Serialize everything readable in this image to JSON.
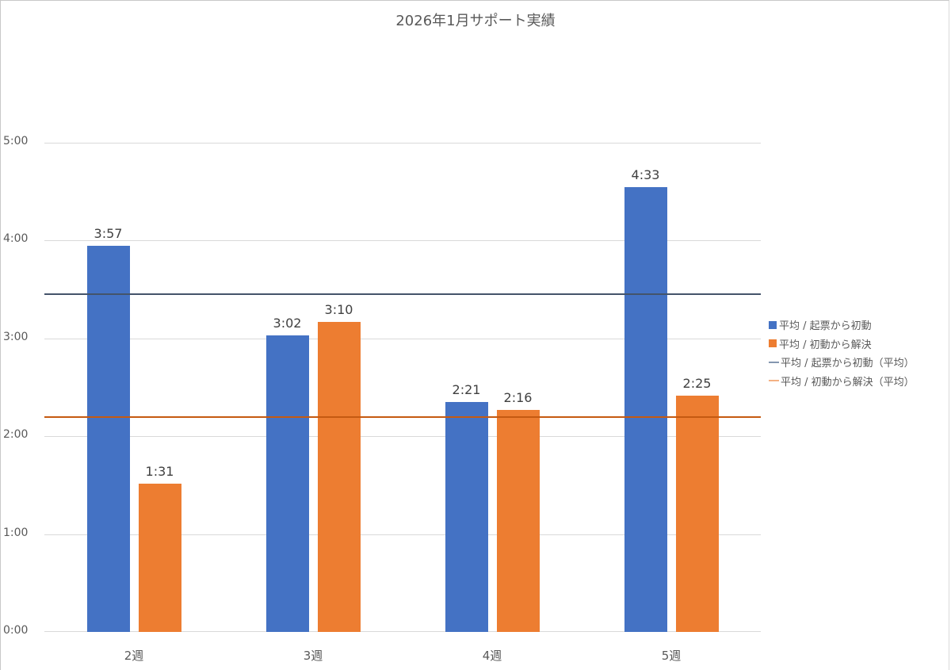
{
  "chart_data": {
    "type": "bar",
    "title": "2026年1月サポート実績",
    "xlabel": "",
    "ylabel": "",
    "categories": [
      "2週",
      "3週",
      "4週",
      "5週"
    ],
    "series": [
      {
        "name": "平均 / 起票から初動",
        "kind": "bar",
        "color": "#4472c4",
        "values": [
          "3:57",
          "3:02",
          "2:21",
          "4:33"
        ],
        "values_minutes": [
          237,
          182,
          141,
          273
        ]
      },
      {
        "name": "平均 / 初動から解決",
        "kind": "bar",
        "color": "#ed7d31",
        "values": [
          "1:31",
          "3:10",
          "2:16",
          "2:25"
        ],
        "values_minutes": [
          91,
          190,
          136,
          145
        ]
      },
      {
        "name": "平均 / 起票から初動（平均）",
        "kind": "line",
        "color": "#44546a",
        "value": "3:27",
        "value_minutes": 207
      },
      {
        "name": "平均 / 初動から解決（平均）",
        "kind": "line",
        "color": "#c55a11",
        "value": "2:12",
        "value_minutes": 132
      }
    ],
    "yticks": [
      "0:00",
      "1:00",
      "2:00",
      "3:00",
      "4:00",
      "5:00"
    ],
    "ylim_minutes": [
      0,
      300
    ],
    "grid": true,
    "legend_position": "right"
  },
  "title": "2026年1月サポート実績",
  "yaxis": {
    "ticks": [
      "0:00",
      "1:00",
      "2:00",
      "3:00",
      "4:00",
      "5:00"
    ]
  },
  "xaxis": {
    "ticks": [
      "2週",
      "3週",
      "4週",
      "5週"
    ]
  },
  "labels": {
    "s1": [
      "3:57",
      "3:02",
      "2:21",
      "4:33"
    ],
    "s2": [
      "1:31",
      "3:10",
      "2:16",
      "2:25"
    ]
  },
  "legend": [
    {
      "label": "平均 / 起票から初動",
      "color": "#4472c4"
    },
    {
      "label": "平均 / 初動から解決",
      "color": "#ed7d31"
    },
    {
      "label": "平均 / 起票から初動（平均）",
      "color": "#8497b0"
    },
    {
      "label": "平均 / 初動から解決（平均）",
      "color": "#f4b183"
    }
  ]
}
